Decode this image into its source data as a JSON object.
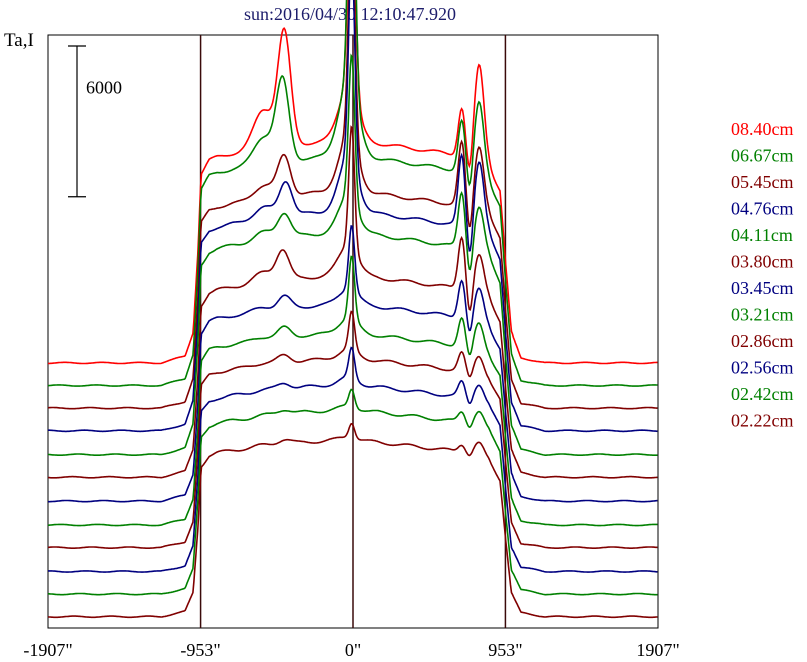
{
  "chart_data": {
    "type": "line",
    "title": "sun:2016/04/30 12:10:47.920",
    "ylabel": "Ta,I",
    "xlabel": "",
    "scale_bar": {
      "value": 6000,
      "label": "6000"
    },
    "xlim": [
      -1907,
      1907
    ],
    "x_ticks": [
      {
        "value": -1907,
        "label": "-1907\""
      },
      {
        "value": -953,
        "label": "-953\""
      },
      {
        "value": 0,
        "label": "0\""
      },
      {
        "value": 953,
        "label": "953\""
      },
      {
        "value": 1907,
        "label": "1907\""
      }
    ],
    "vertical_lines": [
      -953,
      0,
      953
    ],
    "grid": false,
    "legend_position": "right",
    "profile_shape": [
      [
        -1907,
        0
      ],
      [
        -1500,
        0
      ],
      [
        -1200,
        0
      ],
      [
        -1050,
        200
      ],
      [
        -1000,
        900
      ],
      [
        -970,
        3300
      ],
      [
        -950,
        5600
      ],
      [
        -900,
        6000
      ],
      [
        -850,
        6100
      ],
      [
        -750,
        6200
      ],
      [
        -600,
        6300
      ],
      [
        -450,
        6400
      ],
      [
        -300,
        6500
      ],
      [
        -150,
        6550
      ],
      [
        0,
        6550
      ],
      [
        150,
        6500
      ],
      [
        300,
        6400
      ],
      [
        450,
        6300
      ],
      [
        600,
        6200
      ],
      [
        750,
        6100
      ],
      [
        850,
        5800
      ],
      [
        920,
        5100
      ],
      [
        953,
        3000
      ],
      [
        990,
        900
      ],
      [
        1050,
        150
      ],
      [
        1200,
        0
      ],
      [
        1907,
        0
      ]
    ],
    "series": [
      {
        "name": "08.40cm",
        "color": "#ff0000",
        "offset": 7950,
        "disk": 8800,
        "peak": 8700,
        "peak_w": 22,
        "bump": 4500,
        "bump_x": -430,
        "bump2": 1900,
        "bump3": 3800
      },
      {
        "name": "06.67cm",
        "color": "#008000",
        "offset": 7050,
        "disk": 9100,
        "peak": 12000,
        "peak_w": 20,
        "bump": 3200,
        "bump_x": -440,
        "bump2": 2000,
        "bump3": 3000
      },
      {
        "name": "05.45cm",
        "color": "#800000",
        "offset": 6150,
        "disk": 8600,
        "peak": 8700,
        "peak_w": 20,
        "bump": 1600,
        "bump_x": -430,
        "bump2": 2500,
        "bump3": 2600
      },
      {
        "name": "04.76cm",
        "color": "#000080",
        "offset": 5250,
        "disk": 8700,
        "peak": 8400,
        "peak_w": 19,
        "bump": 1400,
        "bump_x": -420,
        "bump2": 2800,
        "bump3": 2800
      },
      {
        "name": "04.11cm",
        "color": "#008000",
        "offset": 4300,
        "disk": 8800,
        "peak": 5800,
        "peak_w": 19,
        "bump": 1000,
        "bump_x": -430,
        "bump2": 2200,
        "bump3": 1800
      },
      {
        "name": "03.80cm",
        "color": "#800000",
        "offset": 3400,
        "disk": 8000,
        "peak": 4900,
        "peak_w": 18,
        "bump": 1200,
        "bump_x": -440,
        "bump2": 2100,
        "bump3": 1500
      },
      {
        "name": "03.45cm",
        "color": "#000080",
        "offset": 2450,
        "disk": 7800,
        "peak": 2600,
        "peak_w": 18,
        "bump": 500,
        "bump_x": -430,
        "bump2": 1500,
        "bump3": 1300
      },
      {
        "name": "03.21cm",
        "color": "#008000",
        "offset": 1500,
        "disk": 7600,
        "peak": 2500,
        "peak_w": 18,
        "bump": 400,
        "bump_x": -430,
        "bump2": 1100,
        "bump3": 1100
      },
      {
        "name": "02.86cm",
        "color": "#800000",
        "offset": 600,
        "disk": 7500,
        "peak": 1500,
        "peak_w": 18,
        "bump": 300,
        "bump_x": -430,
        "bump2": 700,
        "bump3": 800
      },
      {
        "name": "02.56cm",
        "color": "#000080",
        "offset": -350,
        "disk": 7400,
        "peak": 1200,
        "peak_w": 18,
        "bump": 250,
        "bump_x": -430,
        "bump2": 600,
        "bump3": 700
      },
      {
        "name": "02.42cm",
        "color": "#008000",
        "offset": -1250,
        "disk": 7300,
        "peak": 700,
        "peak_w": 18,
        "bump": 200,
        "bump_x": -430,
        "bump2": 400,
        "bump3": 600
      },
      {
        "name": "02.22cm",
        "color": "#800000",
        "offset": -2150,
        "disk": 7000,
        "peak": 600,
        "peak_w": 18,
        "bump": 200,
        "bump_x": -430,
        "bump2": 300,
        "bump3": 500
      }
    ],
    "ylim": [
      -2600,
      21000
    ]
  }
}
